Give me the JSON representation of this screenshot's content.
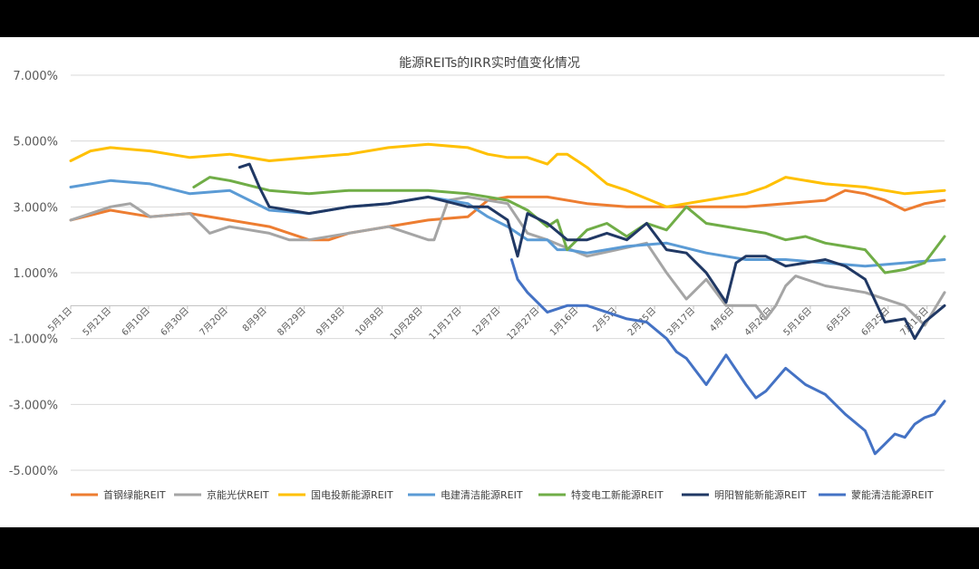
{
  "chart_data": {
    "type": "line",
    "title": "能源REITs的IRR实时值变化情况",
    "xlabel": "",
    "ylabel": "",
    "ylim": [
      -5,
      7
    ],
    "yticks": [
      7,
      5,
      3,
      1,
      -1,
      -3,
      -5
    ],
    "ytick_labels": [
      "7.000%",
      "5.000%",
      "3.000%",
      "1.000%",
      "-1.000%",
      "-3.000%",
      "-5.000%"
    ],
    "x_tick_labels": [
      "5月1日",
      "5月21日",
      "6月10日",
      "6月30日",
      "7月20日",
      "8月9日",
      "8月29日",
      "9月18日",
      "10月8日",
      "10月28日",
      "11月17日",
      "12月7日",
      "12月27日",
      "1月16日",
      "2月5日",
      "2月25日",
      "3月17日",
      "4月6日",
      "4月26日",
      "5月16日",
      "6月5日",
      "6月25日",
      "7月15日"
    ],
    "x_range": [
      0,
      440
    ],
    "grid": true,
    "legend_position": "bottom",
    "series": [
      {
        "name": "首钢绿能REIT",
        "color": "#ED7D31",
        "x": [
          0,
          20,
          40,
          60,
          80,
          100,
          120,
          130,
          140,
          160,
          180,
          200,
          210,
          220,
          240,
          260,
          280,
          300,
          320,
          340,
          360,
          380,
          390,
          400,
          410,
          420,
          430,
          440
        ],
        "y": [
          2.6,
          2.9,
          2.7,
          2.8,
          2.6,
          2.4,
          2.0,
          2.0,
          2.2,
          2.4,
          2.6,
          2.7,
          3.2,
          3.3,
          3.3,
          3.1,
          3.0,
          3.0,
          3.0,
          3.0,
          3.1,
          3.2,
          3.5,
          3.4,
          3.2,
          2.9,
          3.1,
          3.2
        ]
      },
      {
        "name": "京能光伏REIT",
        "color": "#A5A5A5",
        "x": [
          0,
          20,
          30,
          40,
          60,
          70,
          80,
          100,
          110,
          120,
          140,
          160,
          180,
          183,
          190,
          200,
          220,
          230,
          240,
          260,
          275,
          290,
          300,
          310,
          320,
          330,
          345,
          350,
          355,
          360,
          365,
          380,
          400,
          420,
          430,
          440
        ],
        "y": [
          2.6,
          3.0,
          3.1,
          2.7,
          2.8,
          2.2,
          2.4,
          2.2,
          2.0,
          2.0,
          2.2,
          2.4,
          2.0,
          2.0,
          3.2,
          3.3,
          3.1,
          2.2,
          2.0,
          1.5,
          1.7,
          1.9,
          1.0,
          0.2,
          0.8,
          0.0,
          0.0,
          -0.4,
          0.0,
          0.6,
          0.9,
          0.6,
          0.4,
          0.0,
          -0.6,
          0.4
        ]
      },
      {
        "name": "国电投新能源REIT",
        "color": "#FFC000",
        "x": [
          0,
          10,
          20,
          40,
          60,
          80,
          100,
          120,
          140,
          160,
          180,
          200,
          210,
          220,
          230,
          240,
          245,
          250,
          260,
          270,
          280,
          300,
          320,
          340,
          350,
          360,
          380,
          400,
          420,
          440
        ],
        "y": [
          4.4,
          4.7,
          4.8,
          4.7,
          4.5,
          4.6,
          4.4,
          4.5,
          4.6,
          4.8,
          4.9,
          4.8,
          4.6,
          4.5,
          4.5,
          4.3,
          4.6,
          4.6,
          4.2,
          3.7,
          3.5,
          3.0,
          3.2,
          3.4,
          3.6,
          3.9,
          3.7,
          3.6,
          3.4,
          3.5
        ]
      },
      {
        "name": "电建清洁能源REIT",
        "color": "#5B9BD5",
        "x": [
          0,
          20,
          40,
          60,
          80,
          100,
          120,
          140,
          160,
          180,
          200,
          210,
          220,
          230,
          240,
          245,
          250,
          260,
          280,
          300,
          320,
          340,
          360,
          380,
          400,
          420,
          440
        ],
        "y": [
          3.6,
          3.8,
          3.7,
          3.4,
          3.5,
          2.9,
          2.8,
          3.0,
          3.1,
          3.3,
          3.1,
          2.7,
          2.4,
          2.0,
          2.0,
          1.7,
          1.7,
          1.6,
          1.8,
          1.9,
          1.6,
          1.4,
          1.4,
          1.3,
          1.2,
          1.3,
          1.4
        ]
      },
      {
        "name": "特变电工新能源REIT",
        "color": "#70AD47",
        "x": [
          62,
          70,
          80,
          100,
          120,
          140,
          160,
          180,
          200,
          210,
          220,
          230,
          240,
          245,
          250,
          260,
          270,
          280,
          290,
          300,
          310,
          320,
          330,
          340,
          350,
          360,
          370,
          380,
          390,
          400,
          410,
          420,
          430,
          440
        ],
        "y": [
          3.6,
          3.9,
          3.8,
          3.5,
          3.4,
          3.5,
          3.5,
          3.5,
          3.4,
          3.3,
          3.2,
          2.9,
          2.4,
          2.6,
          1.7,
          2.3,
          2.5,
          2.1,
          2.5,
          2.3,
          3.0,
          2.5,
          2.4,
          2.3,
          2.2,
          2.0,
          2.1,
          1.9,
          1.8,
          1.7,
          1.0,
          1.1,
          1.3,
          2.1
        ]
      },
      {
        "name": "明阳智能新能源REIT",
        "color": "#203864",
        "x": [
          85,
          90,
          95,
          100,
          120,
          140,
          160,
          180,
          200,
          210,
          220,
          225,
          230,
          240,
          250,
          260,
          270,
          280,
          290,
          300,
          310,
          320,
          330,
          335,
          340,
          350,
          360,
          370,
          380,
          390,
          400,
          410,
          420,
          425,
          430,
          440
        ],
        "y": [
          4.2,
          4.3,
          3.6,
          3.0,
          2.8,
          3.0,
          3.1,
          3.3,
          3.0,
          3.0,
          2.6,
          1.5,
          2.8,
          2.5,
          2.0,
          2.0,
          2.2,
          2.0,
          2.5,
          1.7,
          1.6,
          1.0,
          0.1,
          1.3,
          1.5,
          1.5,
          1.2,
          1.3,
          1.4,
          1.2,
          0.8,
          -0.5,
          -0.4,
          -1.0,
          -0.5,
          0.0
        ]
      },
      {
        "name": "蒙能清洁能源REIT",
        "color": "#4472C4",
        "x": [
          222,
          225,
          230,
          240,
          250,
          260,
          270,
          280,
          290,
          300,
          305,
          310,
          320,
          330,
          340,
          345,
          350,
          360,
          370,
          380,
          390,
          400,
          405,
          410,
          415,
          420,
          425,
          430,
          435,
          440
        ],
        "y": [
          1.4,
          0.8,
          0.4,
          -0.2,
          0.0,
          0.0,
          -0.2,
          -0.4,
          -0.5,
          -1.0,
          -1.4,
          -1.6,
          -2.4,
          -1.5,
          -2.4,
          -2.8,
          -2.6,
          -1.9,
          -2.4,
          -2.7,
          -3.3,
          -3.8,
          -4.5,
          -4.2,
          -3.9,
          -4.0,
          -3.6,
          -3.4,
          -3.3,
          -2.9
        ]
      }
    ]
  }
}
